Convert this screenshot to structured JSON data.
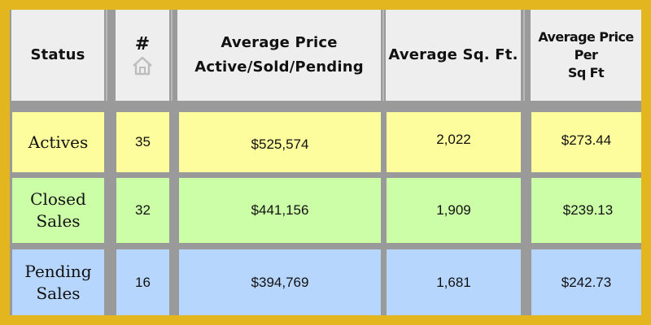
{
  "table": {
    "headers": {
      "status": "Status",
      "count_symbol": "#",
      "count_icon": "home-icon",
      "avg_price_line1": "Average Price",
      "avg_price_line2": "Active/Sold/Pending",
      "avg_sqft": "Average Sq. Ft.",
      "ppsf_line1": "Average Price",
      "ppsf_line2": "Per",
      "ppsf_line3": "Sq Ft"
    },
    "rows": [
      {
        "status_line1": "Actives",
        "status_line2": "",
        "count": "35",
        "avg_price": "$525,574",
        "avg_sqft": "2,022",
        "ppsf": "$273.44",
        "color": "#fdfd9e"
      },
      {
        "status_line1": "Closed",
        "status_line2": "Sales",
        "count": "32",
        "avg_price": "$441,156",
        "avg_sqft": "1,909",
        "ppsf": "$239.13",
        "color": "#ccfea8"
      },
      {
        "status_line1": "Pending",
        "status_line2": "Sales",
        "count": "16",
        "avg_price": "$394,769",
        "avg_sqft": "1,681",
        "ppsf": "$242.73",
        "color": "#b7d6fe"
      }
    ]
  },
  "colors": {
    "border": "#e3b51f",
    "gridline": "#9a9a9a",
    "header_bg": "#eeeeee",
    "actives_bg": "#fdfd9e",
    "closed_bg": "#ccfea8",
    "pending_bg": "#b7d6fe"
  }
}
